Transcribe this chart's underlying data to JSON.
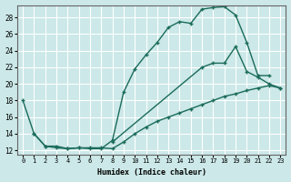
{
  "xlabel": "Humidex (Indice chaleur)",
  "bg_color": "#cce8e8",
  "line_color": "#1a6b5a",
  "grid_color": "#ffffff",
  "xlim": [
    -0.5,
    23.5
  ],
  "ylim": [
    11.5,
    29.5
  ],
  "xticks": [
    0,
    1,
    2,
    3,
    4,
    5,
    6,
    7,
    8,
    9,
    10,
    11,
    12,
    13,
    14,
    15,
    16,
    17,
    18,
    19,
    20,
    21,
    22,
    23
  ],
  "yticks": [
    12,
    14,
    16,
    18,
    20,
    22,
    24,
    26,
    28
  ],
  "line1_x": [
    0,
    1,
    2,
    3,
    4,
    5,
    6,
    7,
    8,
    9,
    10,
    11,
    12,
    13,
    14,
    15,
    16,
    17,
    18,
    19,
    20,
    21,
    22
  ],
  "line1_y": [
    18.0,
    14.0,
    12.5,
    12.3,
    12.2,
    12.3,
    12.2,
    12.2,
    13.2,
    19.0,
    21.8,
    23.5,
    25.0,
    26.8,
    27.5,
    27.3,
    29.0,
    29.2,
    29.3,
    28.3,
    25.0,
    21.0,
    21.0
  ],
  "line2_x": [
    1,
    2,
    3,
    4,
    5,
    6,
    7,
    8,
    9,
    10,
    11,
    12,
    13,
    14,
    15,
    16,
    17,
    18,
    19,
    20,
    21,
    22,
    23
  ],
  "line2_y": [
    14.0,
    12.5,
    12.5,
    12.2,
    12.3,
    12.3,
    12.3,
    12.2,
    13.0,
    14.0,
    14.8,
    15.5,
    16.0,
    16.5,
    17.0,
    17.5,
    18.0,
    18.5,
    18.8,
    19.2,
    19.5,
    19.8,
    19.5
  ],
  "line3_x": [
    8,
    16,
    17,
    18,
    19,
    20,
    21,
    22,
    23
  ],
  "line3_y": [
    13.0,
    22.0,
    22.5,
    22.5,
    24.5,
    21.5,
    20.8,
    20.0,
    19.5
  ]
}
